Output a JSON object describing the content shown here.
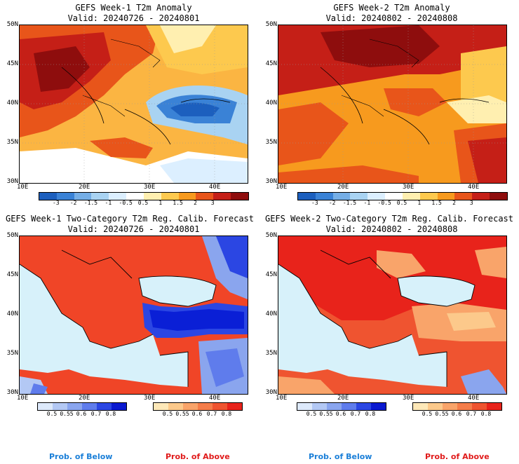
{
  "panels": {
    "tl": {
      "title": "GEFS Week-1 T2m Anomaly",
      "valid": "Valid: 20240726 - 20240801"
    },
    "tr": {
      "title": "GEFS Week-2 T2m Anomaly",
      "valid": "Valid: 20240802 - 20240808"
    },
    "bl": {
      "title": "GEFS Week-1 Two-Category T2m Reg. Calib. Forecast",
      "valid": "Valid: 20240726 - 20240801"
    },
    "br": {
      "title": "GEFS Week-2 Two-Category T2m Reg. Calib. Forecast",
      "valid": "Valid: 20240802 - 20240808"
    }
  },
  "axes": {
    "lat_labels": [
      "50N",
      "45N",
      "40N",
      "35N",
      "30N"
    ],
    "lon_labels": [
      "10E",
      "20E",
      "30E",
      "40E"
    ]
  },
  "anomaly_colorbar": {
    "labels": [
      "-3",
      "-2",
      "-1.5",
      "-1",
      "-0.5",
      "0.5",
      "1",
      "1.5",
      "2",
      "3"
    ],
    "colors": [
      "#1c5fbe",
      "#3a82d6",
      "#75aee6",
      "#a9d3f2",
      "#dcefff",
      "#ffffff",
      "#ffefb0",
      "#fdc94e",
      "#f79a1e",
      "#e8551a",
      "#c51f17",
      "#8e0d0d"
    ]
  },
  "prob_colorbar_below": {
    "labels": [
      "0.5",
      "0.55",
      "0.6",
      "0.7",
      "0.8"
    ],
    "colors": [
      "#dde9fb",
      "#b3c8f4",
      "#8aa5ee",
      "#5f7cec",
      "#2b46e3",
      "#0a19cf"
    ]
  },
  "prob_colorbar_above": {
    "labels": [
      "0.5",
      "0.55",
      "0.6",
      "0.7",
      "0.8"
    ],
    "colors": [
      "#fde8b8",
      "#fcc98b",
      "#f9a46a",
      "#f57d4a",
      "#ef5430",
      "#e8231b"
    ]
  },
  "legend": {
    "below": "Prob. of Below",
    "above": "Prob. of Above",
    "below_color": "#1a7fd8",
    "above_color": "#e01b1b"
  },
  "colors": {
    "sea": "#d7f1fa",
    "land_above": "#f04527",
    "cold_blue": "#0a1fd6"
  }
}
